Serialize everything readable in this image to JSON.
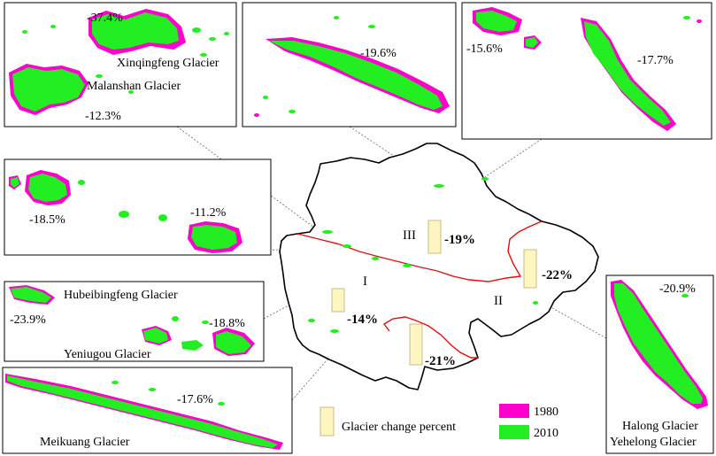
{
  "colors": {
    "glacier_1980": "#ff00cc",
    "glacier_2010": "#22ee22",
    "change_bar": "#fdf6c0",
    "province_border": "#000000",
    "region_border": "#e01010",
    "callout_line": "#666666"
  },
  "insets": {
    "top_left": {
      "glaciers": [
        "Xinqingfeng Glacier",
        "Malanshan Glacier"
      ],
      "changes": [
        "-37.4%",
        "-12.3%"
      ]
    },
    "top_middle": {
      "changes": [
        "-19.6%"
      ]
    },
    "top_right": {
      "changes": [
        "-15.6%",
        "-17.7%"
      ]
    },
    "middle_left": {
      "changes": [
        "-18.5%",
        "-11.2%"
      ]
    },
    "lower_left": {
      "glaciers": [
        "Hubeibingfeng Glacier",
        "Yeniugou Glacier"
      ],
      "changes": [
        "-23.9%",
        "-18.8%"
      ]
    },
    "bottom_left": {
      "glaciers": [
        "Meikuang Glacier"
      ],
      "changes": [
        "-17.6%"
      ]
    },
    "right": {
      "glaciers": [
        "Halong Glacier",
        "Yehelong Glacier"
      ],
      "changes": [
        "-20.9%"
      ]
    }
  },
  "regions": [
    {
      "id": "I",
      "change": "-14%",
      "change_fraction": 0.14
    },
    {
      "id": "II",
      "change": "-22%",
      "change_fraction": 0.22
    },
    {
      "id": "III",
      "change": "-19%",
      "change_fraction": 0.19
    },
    {
      "id": "",
      "change": "-21%",
      "change_fraction": 0.21
    }
  ],
  "legend": {
    "bar_label": "Glacier change percent",
    "items": [
      {
        "label": "1980",
        "color": "#ff00cc"
      },
      {
        "label": "2010",
        "color": "#22ee22"
      }
    ]
  }
}
